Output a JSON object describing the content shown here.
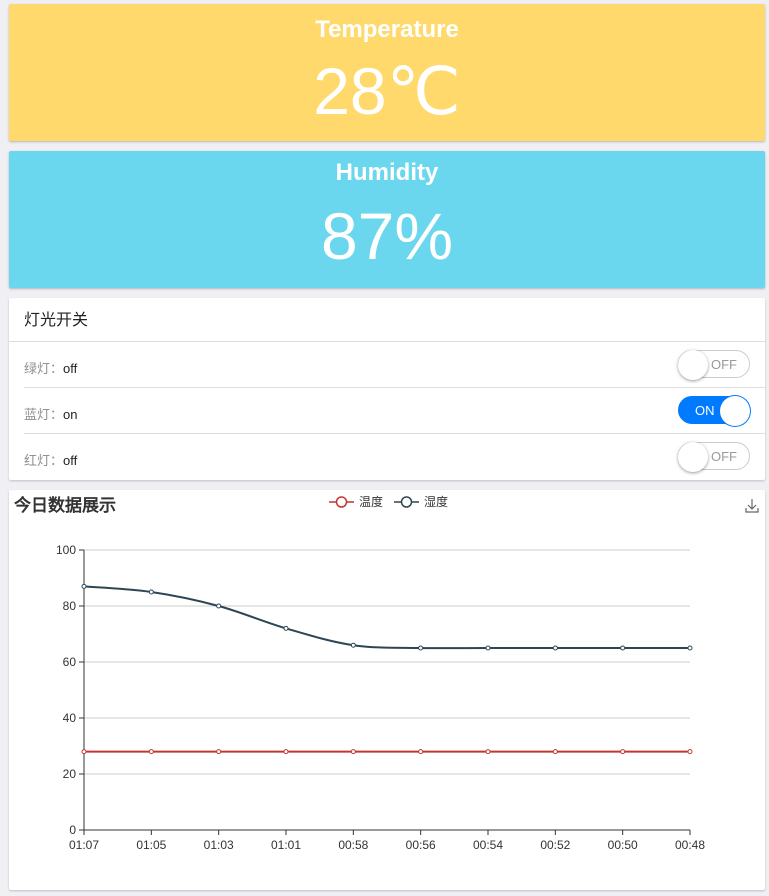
{
  "temperature": {
    "label": "Temperature",
    "value": "28℃",
    "color": "#ffd96b"
  },
  "humidity": {
    "label": "Humidity",
    "value": "87%",
    "color": "#6ad7ee"
  },
  "lights": {
    "title": "灯光开关",
    "items": [
      {
        "name": "绿灯：",
        "state": "off",
        "toggle": "OFF",
        "on": false
      },
      {
        "name": "蓝灯：",
        "state": "on",
        "toggle": "ON",
        "on": true
      },
      {
        "name": "红灯：",
        "state": "off",
        "toggle": "OFF",
        "on": false
      }
    ]
  },
  "chart_data": {
    "type": "line",
    "title": "今日数据展示",
    "legend_position": "top-center",
    "download_icon": "download-icon",
    "categories": [
      "01:07",
      "01:05",
      "01:03",
      "01:01",
      "00:58",
      "00:56",
      "00:54",
      "00:52",
      "00:50",
      "00:48"
    ],
    "yticks": [
      "0",
      "20",
      "40",
      "60",
      "80",
      "100"
    ],
    "ylim": [
      0,
      100
    ],
    "grid": true,
    "series": [
      {
        "name": "温度",
        "color": "#c23531",
        "smooth": false,
        "values": [
          28,
          28,
          28,
          28,
          28,
          28,
          28,
          28,
          28,
          28
        ]
      },
      {
        "name": "湿度",
        "color": "#2f4554",
        "smooth": true,
        "values": [
          87,
          85,
          80,
          72,
          66,
          65,
          65,
          65,
          65,
          65
        ]
      }
    ]
  }
}
